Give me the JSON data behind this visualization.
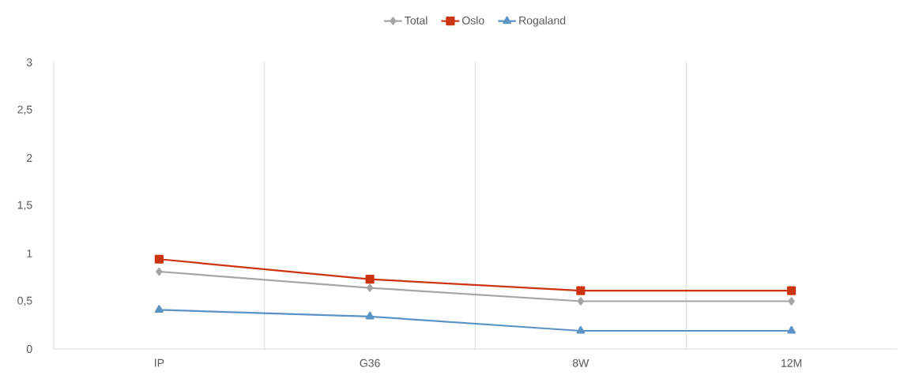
{
  "chart_data": {
    "type": "line",
    "categories": [
      "IP",
      "G36",
      "8W",
      "12M"
    ],
    "series": [
      {
        "name": "Total",
        "color": "#a5a5a5",
        "marker": "diamond",
        "values": [
          0.81,
          0.64,
          0.5,
          0.5
        ]
      },
      {
        "name": "Oslo",
        "color": "#cc3311",
        "marker": "square",
        "values": [
          0.94,
          0.73,
          0.61,
          0.61
        ]
      },
      {
        "name": "Rogaland",
        "color": "#5b93c7",
        "marker": "triangle",
        "values": [
          0.41,
          0.34,
          0.19,
          0.19
        ]
      }
    ],
    "ylim": [
      0,
      3
    ],
    "yticks": [
      0,
      {
        "value": 0.5,
        "label": "0,5"
      },
      1,
      {
        "value": 1.5,
        "label": "1,5"
      },
      2,
      {
        "value": 2.5,
        "label": "2,5"
      },
      3
    ],
    "grid": "x",
    "legend": "top"
  }
}
